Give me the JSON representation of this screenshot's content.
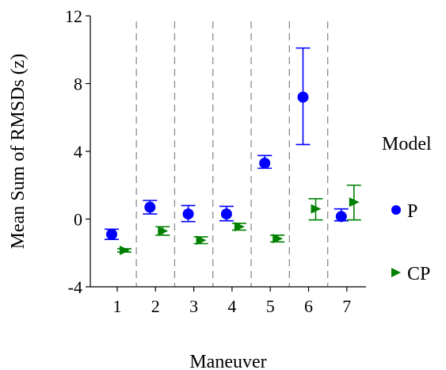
{
  "chart_data": {
    "type": "scatter",
    "title": "",
    "xlabel": "Maneuver",
    "ylabel": "Mean Sum of RMSDs (z)",
    "categories": [
      "1",
      "2",
      "3",
      "4",
      "5",
      "6",
      "7"
    ],
    "ylim": [
      -4,
      12
    ],
    "yticks": [
      -4,
      0,
      4,
      8,
      12
    ],
    "grid": false,
    "category_separators": "dashed vertical lines between maneuvers",
    "error_bars": true,
    "legend": {
      "title": "Model",
      "placement": "right"
    },
    "series": [
      {
        "name": "P",
        "marker": "circle",
        "color": "#0000ff",
        "values": [
          -0.9,
          0.7,
          0.3,
          0.3,
          3.3,
          7.2,
          0.15
        ],
        "err_low": [
          -1.2,
          0.3,
          -0.15,
          -0.1,
          3.0,
          4.4,
          -0.1
        ],
        "err_high": [
          -0.6,
          1.1,
          0.8,
          0.75,
          3.75,
          10.1,
          0.6
        ]
      },
      {
        "name": "CP",
        "marker": "triangle-right",
        "color": "#008000",
        "values": [
          -1.85,
          -0.7,
          -1.25,
          -0.45,
          -1.15,
          0.6,
          1.0
        ],
        "err_low": [
          -1.95,
          -0.95,
          -1.45,
          -0.65,
          -1.35,
          -0.05,
          -0.05
        ],
        "err_high": [
          -1.75,
          -0.45,
          -1.05,
          -0.25,
          -0.95,
          1.2,
          2.0
        ]
      }
    ]
  }
}
